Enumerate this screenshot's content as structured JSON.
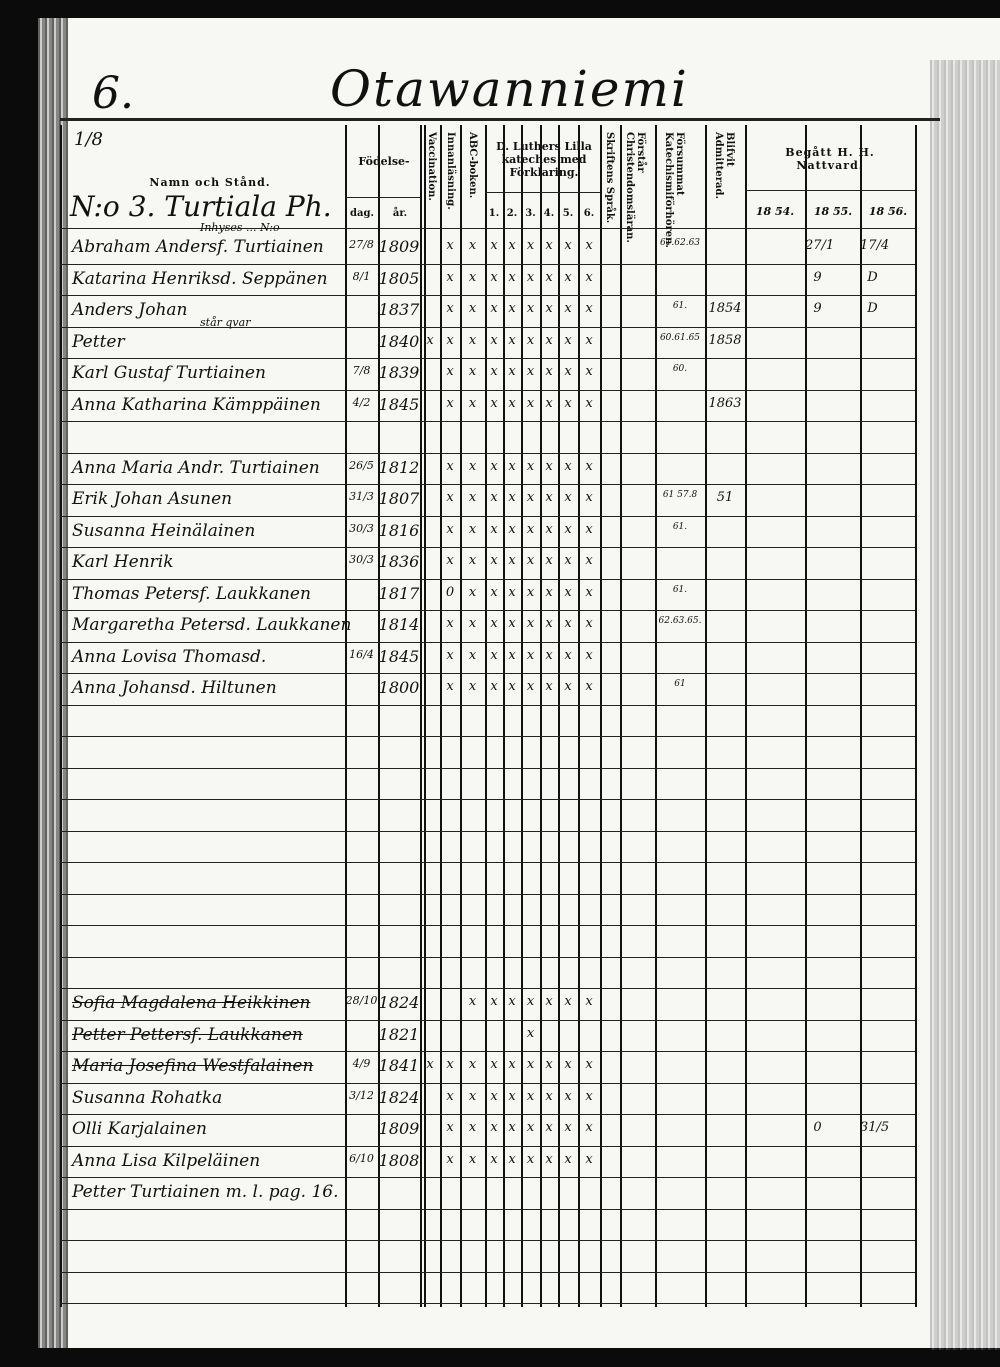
{
  "page": {
    "number": "6.",
    "title": "Otawanniemi",
    "corner_note": "1/8",
    "household_heading": "N:o 3. Turtiala Ph."
  },
  "headers": {
    "name": "Namn och Stånd.",
    "birth": "Födelse-",
    "day": "dag.",
    "year": "år.",
    "vaccination": "Vaccination.",
    "reading": "Innanläsning.",
    "abc": "ABC-boken.",
    "catechism": "D. Luthers Lilla kateches med Förklaring.",
    "catechism_parts": [
      "1.",
      "2.",
      "3.",
      "4.",
      "5.",
      "6."
    ],
    "scripture": "Skriftens Språk.",
    "understanding": "Förstår Christendomsläran.",
    "missed": "Försummat Katechismiförhören.",
    "admitted": "Blifvit Admitterad.",
    "communion": "Begått H. H. Nattvard.",
    "years": [
      "18 54.",
      "18 55.",
      "18 56."
    ]
  },
  "rows": [
    {
      "note": "Inhyses ... N:o",
      "name": "Abraham Andersf. Turtiainen",
      "day": "27/8",
      "year": "1809",
      "marks": [
        "",
        "x",
        "x",
        "x",
        "x",
        "x",
        "x",
        "x",
        "x"
      ],
      "missed": "61.62.63",
      "admitted": "",
      "y1854": "",
      "y1855": "27/1",
      "y1856": "17/4"
    },
    {
      "name": "Katarina Henriksd. Seppänen",
      "day": "8/1",
      "year": "1805",
      "marks": [
        "",
        "x",
        "x",
        "x",
        "x",
        "x",
        "x",
        "x",
        "x"
      ],
      "missed": "",
      "admitted": "",
      "y1854": "",
      "y1855": "9",
      "y1856": "D"
    },
    {
      "name": "Anders Johan",
      "day": "",
      "year": "1837",
      "marks": [
        "",
        "x",
        "x",
        "x",
        "x",
        "x",
        "x",
        "x",
        "x"
      ],
      "missed": "61.",
      "admitted": "1854",
      "y1854": "",
      "y1855": "9",
      "y1856": "D"
    },
    {
      "note": "står qvar",
      "name": "Petter",
      "day": "",
      "year": "1840",
      "marks": [
        "x",
        "x",
        "x",
        "x",
        "x",
        "x",
        "x",
        "x",
        "x"
      ],
      "missed": "60.61.65",
      "admitted": "1858",
      "y1854": "",
      "y1855": "",
      "y1856": ""
    },
    {
      "name": "Karl Gustaf Turtiainen",
      "day": "7/8",
      "year": "1839",
      "marks": [
        "",
        "x",
        "x",
        "x",
        "x",
        "x",
        "x",
        "x",
        "x"
      ],
      "missed": "60.",
      "admitted": "",
      "y1854": "",
      "y1855": "",
      "y1856": ""
    },
    {
      "name": "Anna Katharina Kämppäinen",
      "day": "4/2",
      "year": "1845",
      "marks": [
        "",
        "x",
        "x",
        "x",
        "x",
        "x",
        "x",
        "x",
        "x"
      ],
      "missed": "",
      "admitted": "1863",
      "y1854": "",
      "y1855": "",
      "y1856": ""
    },
    {
      "name": "",
      "day": "",
      "year": "",
      "marks": [],
      "missed": "",
      "admitted": "",
      "y1854": "",
      "y1855": "",
      "y1856": ""
    },
    {
      "name": "Anna Maria Andr. Turtiainen",
      "day": "26/5",
      "year": "1812",
      "marks": [
        "",
        "x",
        "x",
        "x",
        "x",
        "x",
        "x",
        "x",
        "x"
      ],
      "missed": "",
      "admitted": "",
      "y1854": "",
      "y1855": "",
      "y1856": ""
    },
    {
      "name": "Erik Johan Asunen",
      "day": "31/3",
      "year": "1807",
      "marks": [
        "",
        "x",
        "x",
        "x",
        "x",
        "x",
        "x",
        "x",
        "x"
      ],
      "missed": "61 57.8",
      "admitted": "51",
      "y1854": "",
      "y1855": "",
      "y1856": ""
    },
    {
      "name": "Susanna Heinälainen",
      "day": "30/3",
      "year": "1816",
      "marks": [
        "",
        "x",
        "x",
        "x",
        "x",
        "x",
        "x",
        "x",
        "x"
      ],
      "missed": "61.",
      "admitted": "",
      "y1854": "",
      "y1855": "",
      "y1856": ""
    },
    {
      "name": "Karl Henrik",
      "day": "30/3",
      "year": "1836",
      "marks": [
        "",
        "x",
        "x",
        "x",
        "x",
        "x",
        "x",
        "x",
        "x"
      ],
      "missed": "",
      "admitted": "",
      "y1854": "",
      "y1855": "",
      "y1856": ""
    },
    {
      "name": "Thomas Petersf. Laukkanen",
      "day": "",
      "year": "1817",
      "marks": [
        "",
        "0",
        "x",
        "x",
        "x",
        "x",
        "x",
        "x",
        "x"
      ],
      "missed": "61.",
      "admitted": "",
      "y1854": "",
      "y1855": "",
      "y1856": ""
    },
    {
      "name": "Margaretha Petersd. Laukkanen",
      "day": "",
      "year": "1814",
      "marks": [
        "",
        "x",
        "x",
        "x",
        "x",
        "x",
        "x",
        "x",
        "x"
      ],
      "missed": "62.63.65.",
      "admitted": "",
      "y1854": "",
      "y1855": "",
      "y1856": ""
    },
    {
      "name": "Anna Lovisa Thomasd.",
      "day": "16/4",
      "year": "1845",
      "marks": [
        "",
        "x",
        "x",
        "x",
        "x",
        "x",
        "x",
        "x",
        "x"
      ],
      "missed": "",
      "admitted": "",
      "y1854": "",
      "y1855": "",
      "y1856": ""
    },
    {
      "name": "Anna Johansd. Hiltunen",
      "day": "",
      "year": "1800",
      "marks": [
        "",
        "x",
        "x",
        "x",
        "x",
        "x",
        "x",
        "x",
        "x"
      ],
      "missed": "61",
      "admitted": "",
      "y1854": "",
      "y1855": "",
      "y1856": ""
    },
    {
      "name": "",
      "marks": []
    },
    {
      "name": "",
      "marks": []
    },
    {
      "name": "",
      "marks": []
    },
    {
      "name": "",
      "marks": []
    },
    {
      "name": "",
      "marks": []
    },
    {
      "name": "",
      "marks": []
    },
    {
      "name": "",
      "marks": []
    },
    {
      "name": "",
      "marks": []
    },
    {
      "name": "",
      "marks": []
    },
    {
      "name": "Sofia Magdalena Heikkinen",
      "day": "28/10",
      "year": "1824",
      "marks": [
        "",
        "",
        "x",
        "x",
        "x",
        "x",
        "x",
        "x",
        "x"
      ],
      "missed": "",
      "admitted": "",
      "y1854": "",
      "y1855": "",
      "y1856": "",
      "struck": true
    },
    {
      "name": "Petter Pettersf. Laukkanen",
      "day": "",
      "year": "1821",
      "marks": [
        "",
        "",
        "",
        "",
        "",
        "x",
        "",
        "",
        ""
      ],
      "missed": "",
      "admitted": "",
      "y1854": "",
      "y1855": "",
      "y1856": "",
      "struck": true
    },
    {
      "name": "Maria Josefina Westfalainen",
      "day": "4/9",
      "year": "1841",
      "marks": [
        "x",
        "x",
        "x",
        "x",
        "x",
        "x",
        "x",
        "x",
        "x"
      ],
      "missed": "",
      "admitted": "",
      "y1854": "",
      "y1855": "",
      "y1856": "",
      "struck": true
    },
    {
      "name": "Susanna Rohatka",
      "day": "3/12",
      "year": "1824",
      "marks": [
        "",
        "x",
        "x",
        "x",
        "x",
        "x",
        "x",
        "x",
        "x"
      ],
      "missed": "",
      "admitted": "",
      "y1854": "",
      "y1855": "",
      "y1856": ""
    },
    {
      "name": "Olli Karjalainen",
      "day": "",
      "year": "1809",
      "marks": [
        "",
        "x",
        "x",
        "x",
        "x",
        "x",
        "x",
        "x",
        "x"
      ],
      "missed": "",
      "admitted": "",
      "y1854": "",
      "y1855": "0",
      "y1856": "31/5"
    },
    {
      "name": "Anna Lisa Kilpeläinen",
      "day": "6/10",
      "year": "1808",
      "marks": [
        "",
        "x",
        "x",
        "x",
        "x",
        "x",
        "x",
        "x",
        "x"
      ],
      "missed": "",
      "admitted": "",
      "y1854": "",
      "y1855": "",
      "y1856": ""
    },
    {
      "name": "Petter Turtiainen m. l. pag. 16.",
      "day": "",
      "year": "",
      "marks": [],
      "missed": "",
      "admitted": "",
      "y1854": "",
      "y1855": "",
      "y1856": ""
    },
    {
      "name": "",
      "marks": []
    },
    {
      "name": "",
      "marks": []
    },
    {
      "name": "",
      "marks": []
    }
  ]
}
